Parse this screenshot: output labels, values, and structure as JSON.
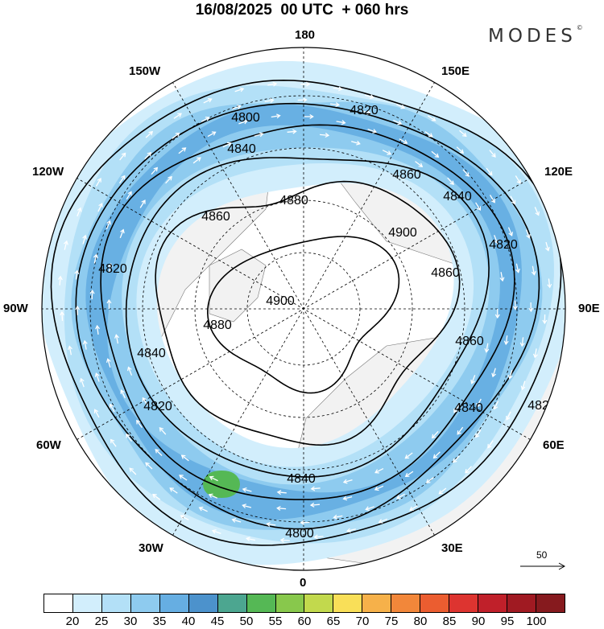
{
  "title": "16/08/2025  00 UTC  + 060 hrs",
  "brand": {
    "name": "MODES",
    "mark": "©"
  },
  "map": {
    "projection": "north-polar-stereographic",
    "longitude_labels": [
      "180",
      "150E",
      "120E",
      "90E",
      "60E",
      "30E",
      "0",
      "30W",
      "60W",
      "90W",
      "120W",
      "150W"
    ],
    "contour_field": "geopotential height",
    "contour_labels": [
      "4800",
      "4820",
      "4840",
      "4860",
      "4880",
      "4900"
    ],
    "vector_reference": {
      "label": "50"
    },
    "colors": {
      "ocean": "#ffffff",
      "land": "#f2f2f2",
      "coast": "#777777",
      "contour": "#000000",
      "vectors": "#ffffff"
    }
  },
  "colorbar": {
    "ticks": [
      "20",
      "25",
      "30",
      "35",
      "40",
      "45",
      "50",
      "55",
      "60",
      "65",
      "70",
      "75",
      "80",
      "85",
      "90",
      "95",
      "100"
    ],
    "colors": [
      "#ffffff",
      "#d2eefc",
      "#b3e0f7",
      "#8ecbef",
      "#66aee2",
      "#4c92cc",
      "#4ca690",
      "#55b855",
      "#88c84c",
      "#c2d94d",
      "#f9df58",
      "#f6b14a",
      "#f2873a",
      "#eb5d30",
      "#dd3430",
      "#c0202a",
      "#a01a22",
      "#861a1e"
    ]
  }
}
